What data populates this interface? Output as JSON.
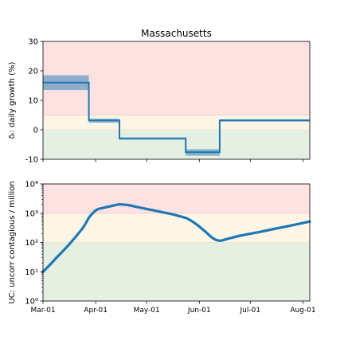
{
  "colors": {
    "line": "#1f77b4",
    "band": "#1f77b4",
    "zone_red": "#fde2e2",
    "zone_yellow": "#fdf5e6",
    "zone_green": "#e6f0e2",
    "zone_edge_red": "#f5c8c0",
    "zone_edge_yellow": "#f3e2bf"
  },
  "chart_data": [
    {
      "type": "line",
      "title": "Massachusetts",
      "xlabel": "",
      "ylabel": "δᵢ: daily growth (%)",
      "x_range": [
        "2020-03-01",
        "2020-08-05"
      ],
      "ylim": [
        -10,
        30
      ],
      "yticks": [
        -10,
        0,
        10,
        20,
        30
      ],
      "xticks": [
        "2020-03-01",
        "2020-04-01",
        "2020-05-01",
        "2020-06-01",
        "2020-07-01",
        "2020-08-01"
      ],
      "show_xtick_labels": false,
      "zones": [
        {
          "from": 5,
          "to": 30,
          "color": "red"
        },
        {
          "from": 0,
          "to": 5,
          "color": "yellow"
        },
        {
          "from": -10,
          "to": 0,
          "color": "green"
        }
      ],
      "segments": [
        {
          "start": "2020-03-01",
          "end": "2020-03-28",
          "value": 16.0,
          "low": 13.5,
          "high": 18.5
        },
        {
          "start": "2020-03-28",
          "end": "2020-04-15",
          "value": 3.2,
          "low": 2.4,
          "high": 3.8
        },
        {
          "start": "2020-04-15",
          "end": "2020-05-24",
          "value": -2.9,
          "low": -3.0,
          "high": -2.7
        },
        {
          "start": "2020-05-24",
          "end": "2020-06-13",
          "value": -7.6,
          "low": -8.8,
          "high": -6.6
        },
        {
          "start": "2020-06-13",
          "end": "2020-08-05",
          "value": 3.2,
          "low": 2.8,
          "high": 3.6
        }
      ]
    },
    {
      "type": "line",
      "title": "",
      "xlabel": "",
      "ylabel": "UC: uncorr contagious / million",
      "yscale": "log",
      "x_range": [
        "2020-03-01",
        "2020-08-05"
      ],
      "ylim": [
        1,
        10000
      ],
      "yticks": [
        1,
        10,
        100,
        1000,
        10000
      ],
      "ytick_labels": [
        "10⁰",
        "10¹",
        "10²",
        "10³",
        "10⁴"
      ],
      "xticks": [
        "2020-03-01",
        "2020-04-01",
        "2020-05-01",
        "2020-06-01",
        "2020-07-01",
        "2020-08-01"
      ],
      "xtick_labels": [
        "Mar-01",
        "Apr-01",
        "May-01",
        "Jun-01",
        "Jul-01",
        "Aug-01"
      ],
      "zones": [
        {
          "from": 1000,
          "to": 10000,
          "color": "red"
        },
        {
          "from": 100,
          "to": 1000,
          "color": "yellow"
        },
        {
          "from": 1,
          "to": 100,
          "color": "green"
        }
      ],
      "series": [
        {
          "x": [
            "2020-03-01",
            "2020-03-05",
            "2020-03-10",
            "2020-03-15",
            "2020-03-20",
            "2020-03-25",
            "2020-03-28",
            "2020-03-31",
            "2020-04-02",
            "2020-04-06",
            "2020-04-10",
            "2020-04-15",
            "2020-04-20",
            "2020-04-25",
            "2020-05-01",
            "2020-05-08",
            "2020-05-15",
            "2020-05-20",
            "2020-05-25",
            "2020-05-30",
            "2020-06-04",
            "2020-06-09",
            "2020-06-13",
            "2020-06-17",
            "2020-06-25",
            "2020-07-05",
            "2020-07-15",
            "2020-07-25",
            "2020-08-05"
          ],
          "values": [
            10,
            17,
            35,
            70,
            150,
            350,
            700,
            1100,
            1350,
            1550,
            1750,
            2000,
            1900,
            1650,
            1400,
            1150,
            950,
            800,
            650,
            430,
            250,
            140,
            115,
            130,
            170,
            220,
            290,
            380,
            520
          ]
        }
      ]
    }
  ]
}
